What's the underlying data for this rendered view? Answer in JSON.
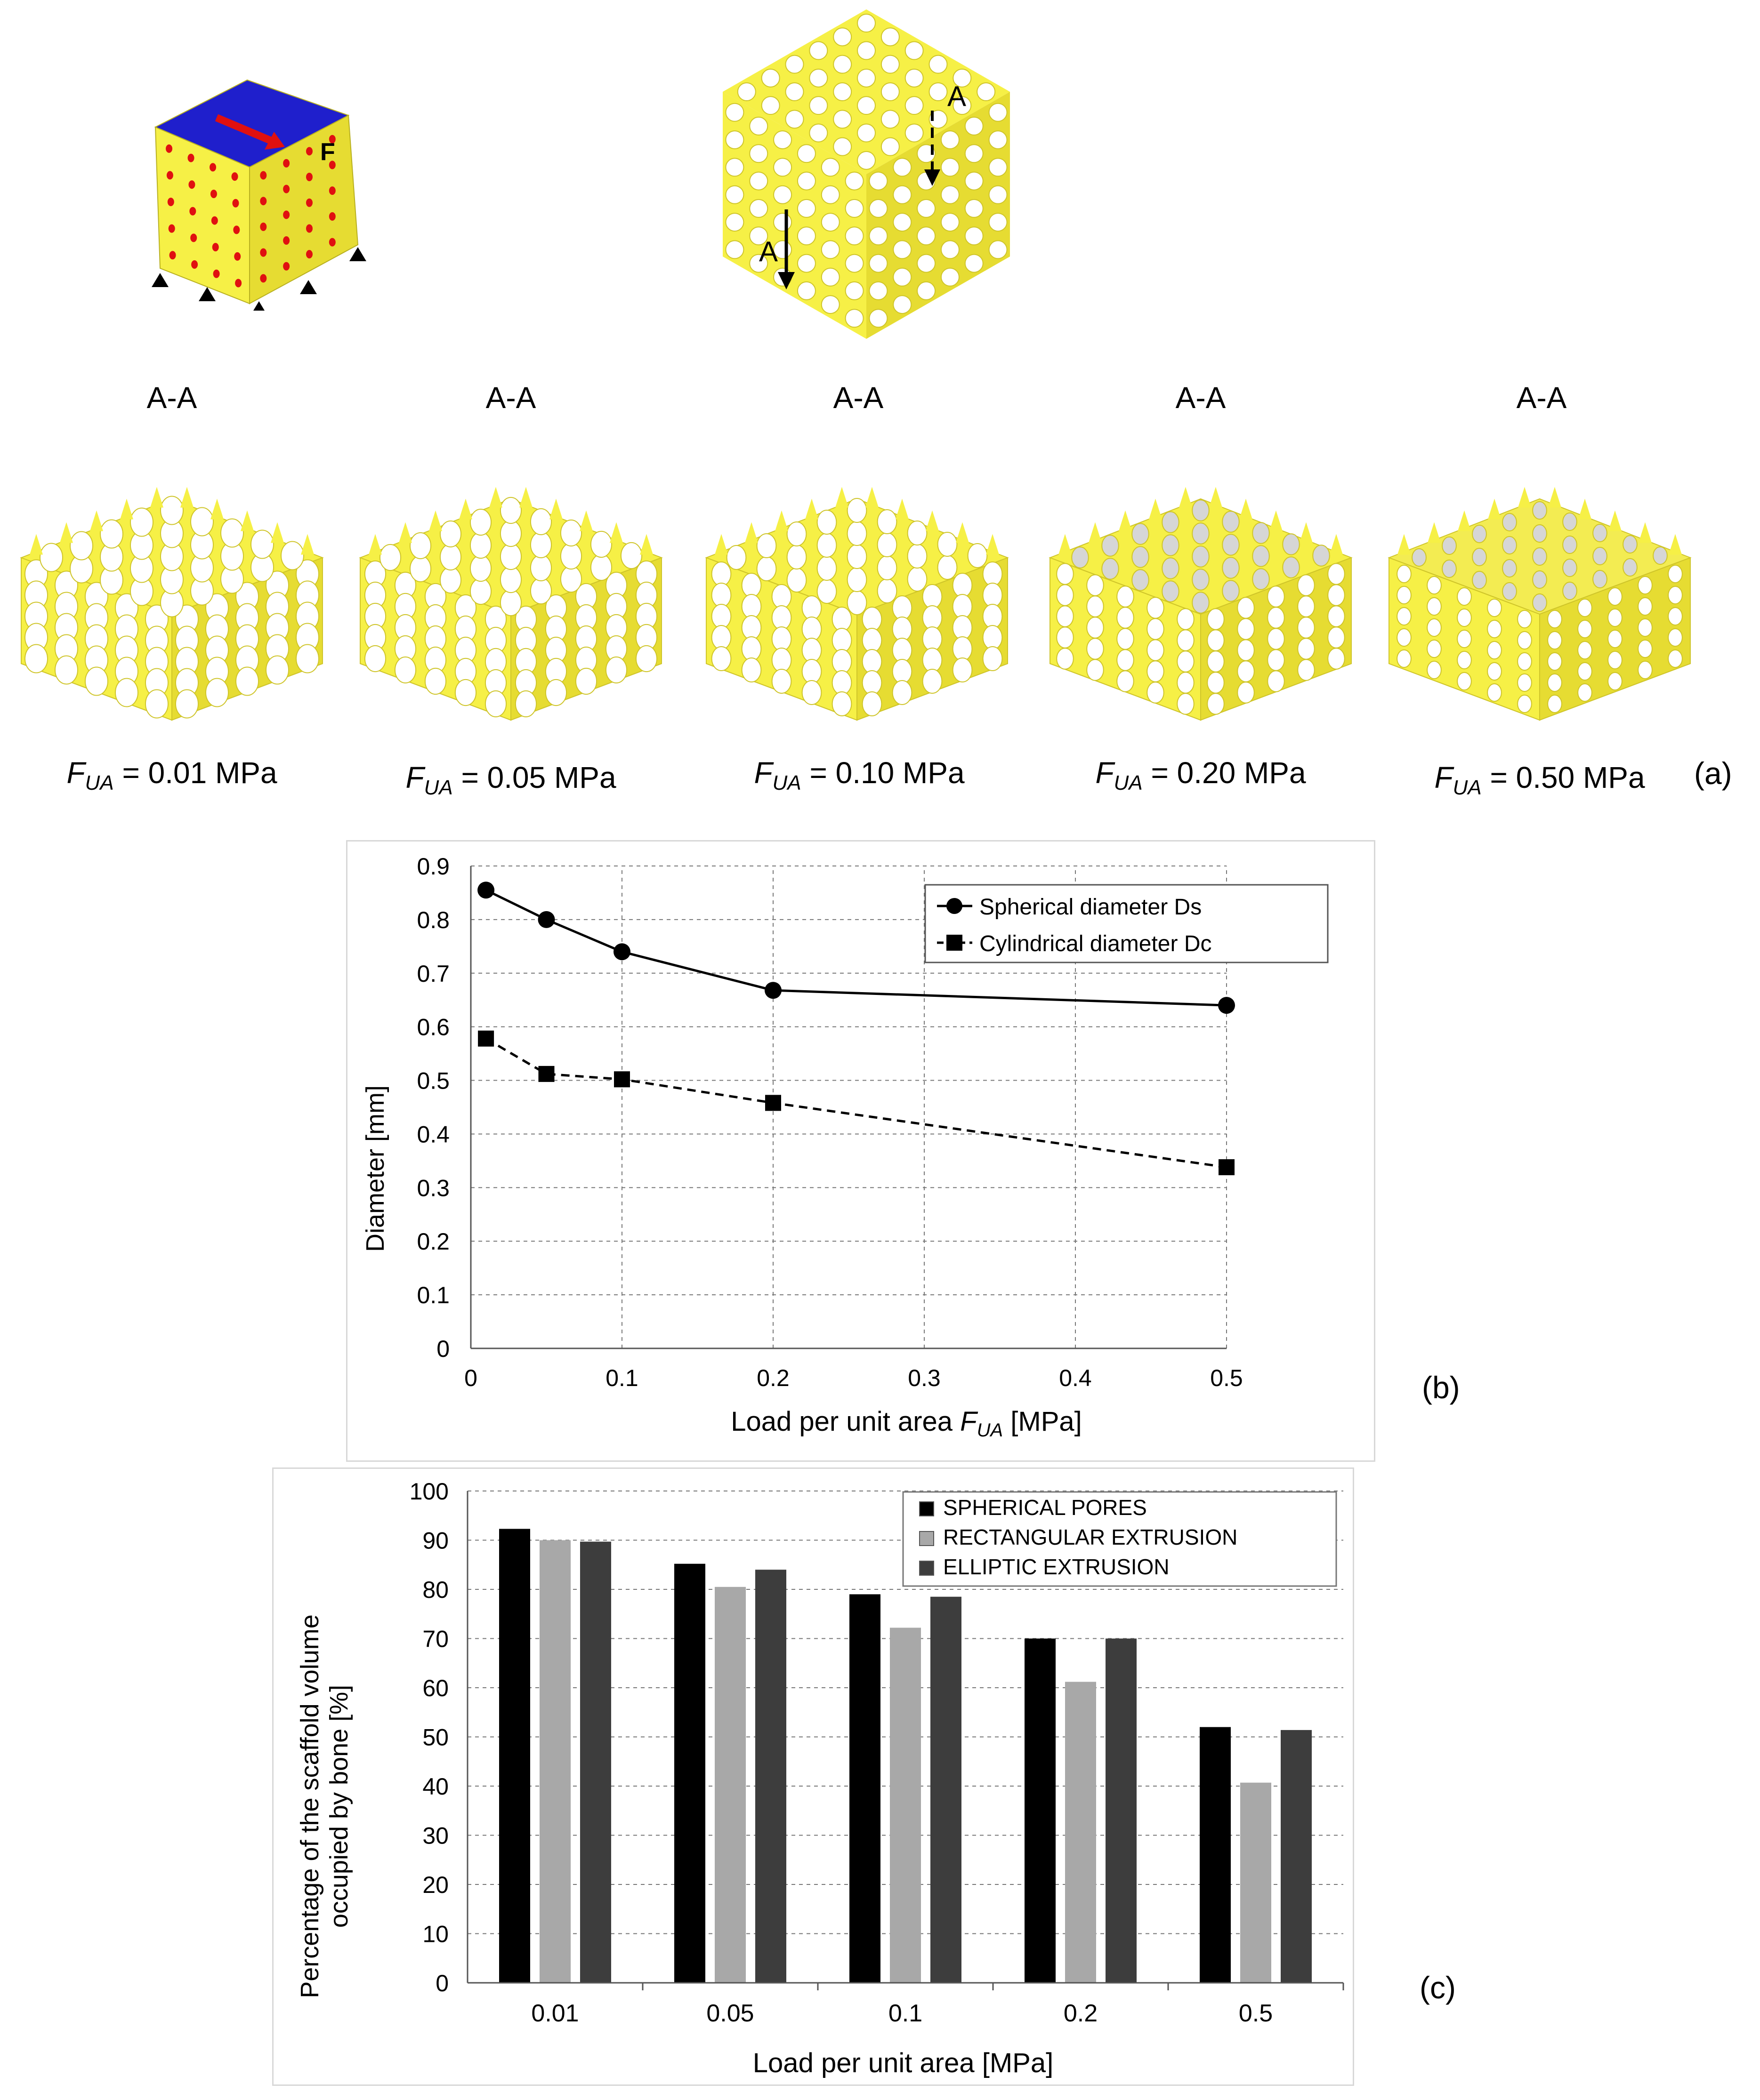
{
  "panel_a": {
    "force_label": "F",
    "section_marker": "A",
    "section_titles": [
      "A-A",
      "A-A",
      "A-A",
      "A-A",
      "A-A"
    ],
    "load_labels": [
      {
        "symbol": "F",
        "sub": "UA",
        "text": " = 0.01 MPa"
      },
      {
        "symbol": "F",
        "sub": "UA",
        "text": " = 0.05 MPa"
      },
      {
        "symbol": "F",
        "sub": "UA",
        "text": " = 0.10 MPa"
      },
      {
        "symbol": "F",
        "sub": "UA",
        "text": " = 0.20 MPa"
      },
      {
        "symbol": "F",
        "sub": "UA",
        "text": " = 0.50 MPa"
      }
    ],
    "panel_letter": "(a)"
  },
  "colors": {
    "scaffold": "#f6f046",
    "scaffold_side": "#e6dc32",
    "scaffold_dark": "#cfc52a",
    "top_face": "#1f1fcc",
    "force_arrow": "#e01010",
    "dots": "#e01010",
    "bar_spherical": "#000000",
    "bar_rectangular": "#a8a8a8",
    "bar_elliptic": "#3d3d3d",
    "grid": "#777777"
  },
  "chart_data": [
    {
      "type": "line",
      "panel_letter": "(b)",
      "xlabel_prefix": "Load per unit area ",
      "xlabel_symbol": "F",
      "xlabel_sub": "UA",
      "xlabel_suffix": " [MPa]",
      "ylabel": "Diameter [mm]",
      "xlim": [
        0,
        0.5
      ],
      "ylim": [
        0,
        0.9
      ],
      "x_ticks": [
        "0",
        "0.1",
        "0.2",
        "0.3",
        "0.4",
        "0.5"
      ],
      "y_ticks": [
        "0",
        "0.1",
        "0.2",
        "0.3",
        "0.4",
        "0.5",
        "0.6",
        "0.7",
        "0.8",
        "0.9"
      ],
      "x_category_positions": [
        0,
        0.1,
        0.2,
        0.3,
        0.4,
        0.5
      ],
      "grid": true,
      "legend_position": "top-right",
      "series": [
        {
          "name": "Spherical diameter Ds",
          "marker": "circle",
          "line": "solid",
          "x": [
            0.01,
            0.05,
            0.1,
            0.2,
            0.5
          ],
          "y": [
            0.855,
            0.8,
            0.74,
            0.668,
            0.64
          ]
        },
        {
          "name": "Cylindrical diameter Dc",
          "marker": "square",
          "line": "dashed",
          "x": [
            0.01,
            0.05,
            0.1,
            0.2,
            0.5
          ],
          "y": [
            0.578,
            0.512,
            0.502,
            0.458,
            0.338
          ]
        }
      ]
    },
    {
      "type": "bar",
      "panel_letter": "(c)",
      "xlabel": "Load per unit area [MPa]",
      "ylabel_line1": "Percentage of the scaffold volume",
      "ylabel_line2": "occupied by bone [%]",
      "ylim": [
        0,
        100
      ],
      "y_ticks": [
        "0",
        "10",
        "20",
        "30",
        "40",
        "50",
        "60",
        "70",
        "80",
        "90",
        "100"
      ],
      "categories": [
        "0.01",
        "0.05",
        "0.1",
        "0.2",
        "0.5"
      ],
      "grid": true,
      "legend_position": "top-right",
      "series": [
        {
          "name": "SPHERICAL PORES",
          "values": [
            92.3,
            85.2,
            79.0,
            70.0,
            52.0
          ]
        },
        {
          "name": "RECTANGULAR EXTRUSION",
          "values": [
            90.0,
            80.5,
            72.2,
            61.2,
            40.7
          ]
        },
        {
          "name": "ELLIPTIC EXTRUSION",
          "values": [
            89.7,
            84.0,
            78.5,
            70.0,
            51.4
          ]
        }
      ]
    }
  ]
}
